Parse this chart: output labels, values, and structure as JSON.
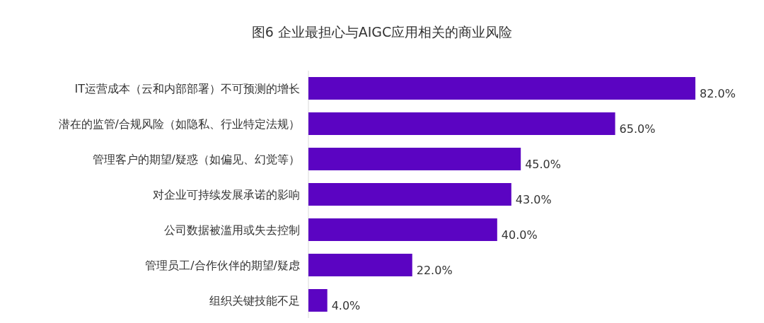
{
  "chart_data": {
    "type": "bar",
    "orientation": "horizontal",
    "title": "图6 企业最担心与AIGC应用相关的商业风险",
    "categories": [
      "IT运营成本（云和内部部署）不可预测的增长",
      "潜在的监管/合规风险（如隐私、行业特定法规）",
      "管理客户的期望/疑惑（如偏见、幻觉等）",
      "对企业可持续发展承诺的影响",
      "公司数据被滥用或失去控制",
      "管理员工/合作伙伴的期望/疑虑",
      "组织关键技能不足"
    ],
    "values": [
      82.0,
      65.0,
      45.0,
      43.0,
      40.0,
      22.0,
      4.0
    ],
    "value_labels": [
      "82.0%",
      "65.0%",
      "45.0%",
      "43.0%",
      "40.0%",
      "22.0%",
      "4.0%"
    ],
    "color": "#5b04c2"
  }
}
